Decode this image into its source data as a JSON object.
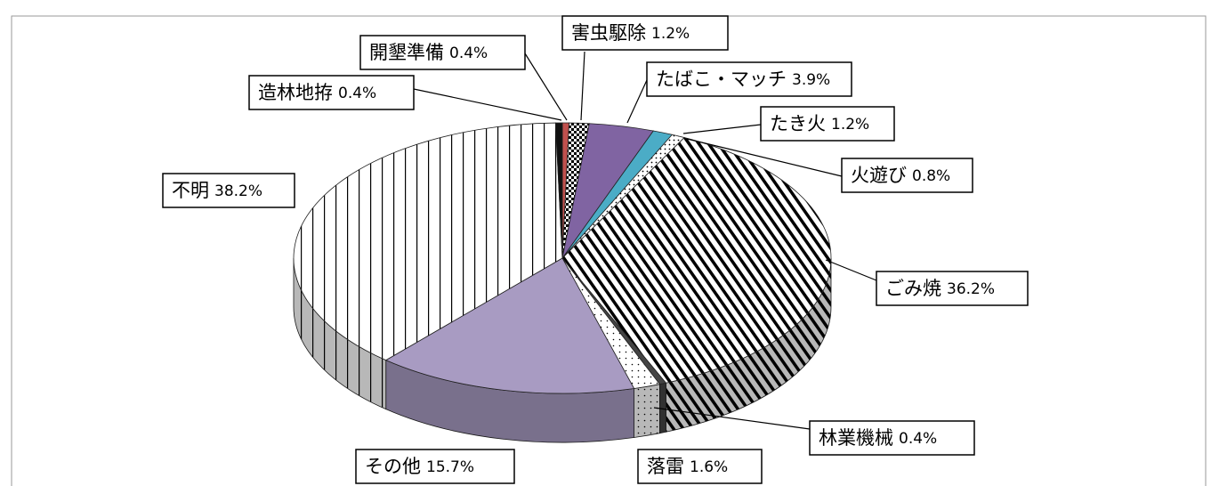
{
  "chart_data": {
    "type": "pie3d",
    "categories": [
      "開墾準備",
      "害虫駆除",
      "たばこ・マッチ",
      "たき火",
      "火遊び",
      "ごみ焼",
      "林業機械",
      "落雷",
      "その他",
      "不明",
      "造林地拵"
    ],
    "values": [
      0.4,
      1.2,
      3.9,
      1.2,
      0.8,
      36.2,
      0.4,
      1.6,
      15.7,
      38.2,
      0.4
    ],
    "value_labels": [
      "0.4%",
      "1.2%",
      "3.9%",
      "1.2%",
      "0.8%",
      "36.2%",
      "0.4%",
      "1.6%",
      "15.7%",
      "38.2%",
      "0.4%"
    ],
    "colors": [
      "#c0504d",
      "#ffffff",
      "#8064a2",
      "#4bacc6",
      "#ffffff",
      "#ffffff",
      "#444444",
      "#ffffff",
      "#a89bc2",
      "#ffffff",
      "#111111"
    ]
  }
}
